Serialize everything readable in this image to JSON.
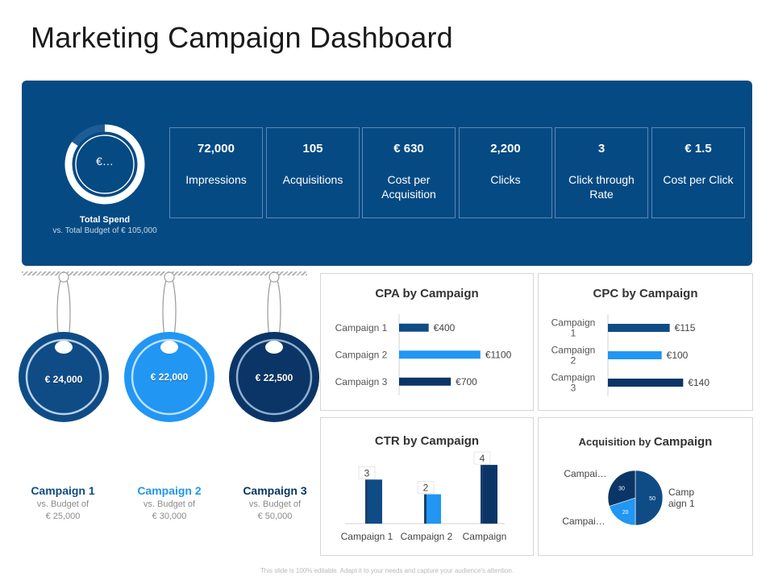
{
  "title": "Marketing Campaign Dashboard",
  "colors": {
    "banner": "#064a83",
    "campaign1": "#0f4c86",
    "campaign2": "#2196f3",
    "campaign3": "#0b3566",
    "ring": "#ffffff"
  },
  "total_spend": {
    "value_label": "€…",
    "title": "Total Spend",
    "subtitle": "vs. Total Budget of € 105,000"
  },
  "kpis": [
    {
      "value": "72,000",
      "label": "Impressions"
    },
    {
      "value": "105",
      "label": "Acquisitions"
    },
    {
      "value": "€ 630",
      "label": "Cost per Acquisition"
    },
    {
      "value": "2,200",
      "label": "Clicks"
    },
    {
      "value": "3",
      "label": "Click through Rate"
    },
    {
      "value": "€ 1.5",
      "label": "Cost per Click"
    }
  ],
  "campaigns": [
    {
      "spend": "€ 24,000",
      "name": "Campaign 1",
      "budget_line1": "vs. Budget of",
      "budget_line2": "€ 25,000"
    },
    {
      "spend": "€ 22,000",
      "name": "Campaign 2",
      "budget_line1": "vs. Budget of",
      "budget_line2": "€ 30,000"
    },
    {
      "spend": "€ 22,500",
      "name": "Campaign 3",
      "budget_line1": "vs. Budget of",
      "budget_line2": "€ 50,000"
    }
  ],
  "chart_data": [
    {
      "type": "bar",
      "orientation": "horizontal",
      "title": "CPA by Campaign",
      "categories": [
        "Campaign 1",
        "Campaign 2",
        "Campaign 3"
      ],
      "values": [
        400,
        1100,
        700
      ],
      "value_labels": [
        "€400",
        "€1100",
        "€700"
      ],
      "xlim": [
        0,
        1200
      ]
    },
    {
      "type": "bar",
      "orientation": "horizontal",
      "title": "CPC by Campaign",
      "categories": [
        "Campaign 1",
        "Campaign 2",
        "Campaign 3"
      ],
      "values": [
        115,
        100,
        140
      ],
      "value_labels": [
        "€115",
        "€100",
        "€140"
      ],
      "xlim": [
        0,
        150
      ]
    },
    {
      "type": "bar",
      "orientation": "vertical",
      "title": "CTR by Campaign",
      "categories": [
        "Campaign 1",
        "Campaign 2",
        "Campaign"
      ],
      "values": [
        3,
        2,
        4
      ],
      "value_labels": [
        "3",
        "2",
        "4"
      ],
      "ylim": [
        0,
        4.5
      ]
    },
    {
      "type": "pie",
      "title_prefix": "Acquisition by",
      "title_main": "Campaign",
      "labels": [
        "Camp aign 1",
        "Campai…",
        "Campai…"
      ],
      "values": [
        50,
        20,
        30
      ],
      "value_labels": [
        "50",
        "20",
        "30"
      ]
    }
  ],
  "footer": "This slide is 100% editable. Adapt it to your needs and capture your audience's attention."
}
